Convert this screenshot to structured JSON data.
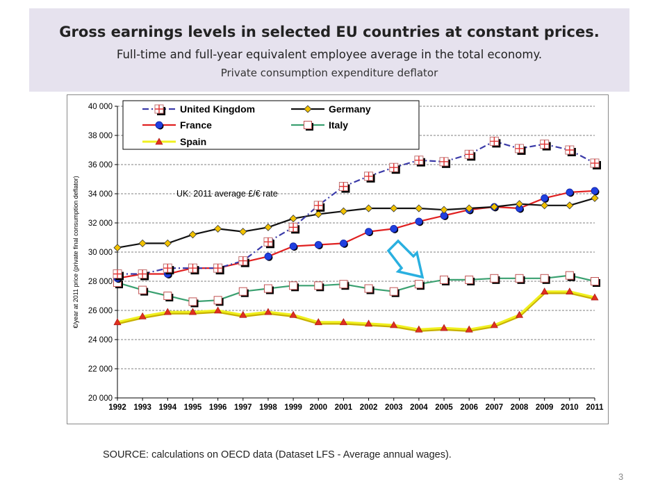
{
  "slide": {
    "title": "Gross earnings levels in selected EU countries at constant prices.",
    "subtitle": "Full-time and full-year equivalent employee average in the total economy.",
    "subtitle2": "Private consumption expenditure deflator",
    "source": "SOURCE: calculations on OECD data  (Dataset LFS - Average annual wages).",
    "page_number": "3"
  },
  "chart_data": {
    "type": "line",
    "ylabel": "€/year at 2011 price (private final consumption deflator)",
    "annotation": "UK: 2011 average £/€ rate",
    "ylim": [
      20000,
      40000
    ],
    "yticks": [
      20000,
      22000,
      24000,
      26000,
      28000,
      30000,
      32000,
      34000,
      36000,
      38000,
      40000
    ],
    "ytick_labels": [
      "20 000",
      "22 000",
      "24 000",
      "26 000",
      "28 000",
      "30 000",
      "32 000",
      "34 000",
      "36 000",
      "38 000",
      "40 000"
    ],
    "grid": "horizontal dashed",
    "legend_position": "top-left",
    "categories": [
      "1992",
      "1993",
      "1994",
      "1995",
      "1996",
      "1997",
      "1998",
      "1999",
      "2000",
      "2001",
      "2002",
      "2003",
      "2004",
      "2005",
      "2006",
      "2007",
      "2008",
      "2009",
      "2010",
      "2011"
    ],
    "series": [
      {
        "name": "United Kingdom",
        "color": "#3a3aa8",
        "marker": "plus-square",
        "dash": "dashdot",
        "values": [
          28500,
          28500,
          28900,
          28900,
          28900,
          29400,
          30700,
          31700,
          33200,
          34500,
          35200,
          35800,
          36300,
          36200,
          36700,
          37600,
          37100,
          37400,
          37000,
          36100
        ]
      },
      {
        "name": "Germany",
        "color": "#111111",
        "marker": "diamond",
        "marker_fill": "#f2c200",
        "dash": "solid",
        "values": [
          30300,
          30600,
          30600,
          31200,
          31600,
          31400,
          31700,
          32300,
          32600,
          32800,
          33000,
          33000,
          33000,
          32900,
          33000,
          33100,
          33300,
          33200,
          33200,
          33700
        ]
      },
      {
        "name": "France",
        "color": "#e02020",
        "marker": "circle",
        "marker_fill": "#2040e0",
        "dash": "solid",
        "values": [
          28200,
          28500,
          28500,
          28900,
          28900,
          29300,
          29700,
          30400,
          30500,
          30600,
          31400,
          31600,
          32100,
          32500,
          32900,
          33100,
          33000,
          33700,
          34100,
          34200
        ]
      },
      {
        "name": "Italy",
        "color": "#3aa070",
        "marker": "square",
        "marker_fill": "#ffffff",
        "dash": "solid",
        "values": [
          27900,
          27400,
          27000,
          26600,
          26700,
          27300,
          27500,
          27700,
          27700,
          27800,
          27500,
          27300,
          27800,
          28100,
          28100,
          28200,
          28200,
          28200,
          28400,
          28000
        ]
      },
      {
        "name": "Spain",
        "color": "#f0f020",
        "marker": "triangle",
        "marker_fill": "#e03020",
        "dash": "solid",
        "values": [
          25200,
          25600,
          25900,
          25900,
          26000,
          25700,
          25900,
          25700,
          25200,
          25200,
          25100,
          25000,
          24700,
          24800,
          24700,
          25000,
          25700,
          27300,
          27300,
          26900
        ]
      }
    ]
  }
}
